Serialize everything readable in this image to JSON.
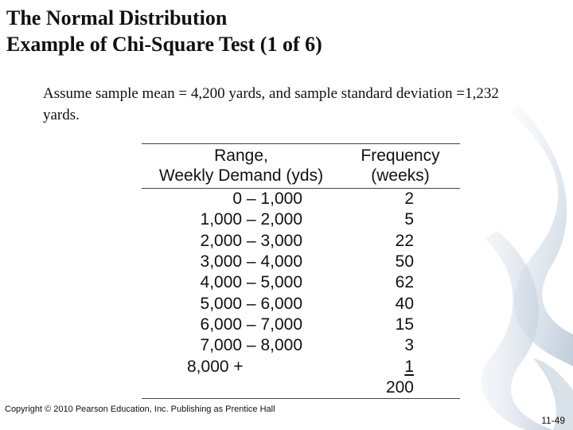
{
  "slide": {
    "title_line1": "The Normal Distribution",
    "title_line2": "Example of Chi-Square Test (1 of 6)",
    "body": "Assume sample mean = 4,200 yards, and sample standard deviation =1,232 yards."
  },
  "table": {
    "header_range_line1": "Range,",
    "header_range_line2": "Weekly Demand (yds)",
    "header_freq_line1": "Frequency",
    "header_freq_line2": "(weeks)",
    "rows": [
      {
        "range": "0 – 1,000",
        "frequency": "2"
      },
      {
        "range": "1,000 – 2,000",
        "frequency": "5"
      },
      {
        "range": "2,000 – 3,000",
        "frequency": "22"
      },
      {
        "range": "3,000 – 4,000",
        "frequency": "50"
      },
      {
        "range": "4,000 – 5,000",
        "frequency": "62"
      },
      {
        "range": "5,000 – 6,000",
        "frequency": "40"
      },
      {
        "range": "6,000 – 7,000",
        "frequency": "15"
      },
      {
        "range": "7,000 – 8,000",
        "frequency": "3"
      },
      {
        "range": "8,000 +",
        "frequency": "1"
      }
    ],
    "total": "200"
  },
  "footer": {
    "copyright": "Copyright © 2010 Pearson Education, Inc. Publishing as Prentice Hall",
    "page_number": "11-49"
  }
}
